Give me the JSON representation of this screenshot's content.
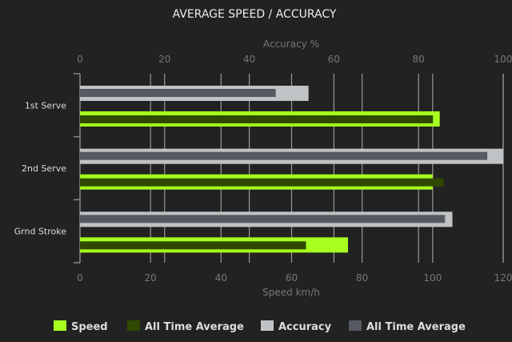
{
  "chart_data": {
    "type": "bar",
    "title": "AVERAGE SPEED / ACCURACY",
    "categories": [
      "1st Serve",
      "2nd Serve",
      "Grnd Stroke"
    ],
    "x_top": {
      "label": "Accuracy %",
      "range": [
        0,
        100
      ],
      "ticks": [
        "0",
        "20",
        "40",
        "60",
        "80",
        "100"
      ]
    },
    "x_bottom": {
      "label": "Speed km/h",
      "range": [
        0,
        120
      ],
      "ticks": [
        "0",
        "20",
        "40",
        "60",
        "80",
        "100",
        "120"
      ]
    },
    "series": [
      {
        "name": "Speed",
        "axis": "bottom",
        "color": "#a6ff1f",
        "values": [
          102,
          100,
          76
        ]
      },
      {
        "name": "All Time Average",
        "axis": "bottom",
        "color": "#2f4a00",
        "values": [
          101,
          104,
          65
        ]
      },
      {
        "name": "Accuracy",
        "axis": "top",
        "color": "#bfc3c5",
        "values": [
          54,
          100,
          88
        ]
      },
      {
        "name": "All Time Average",
        "axis": "top",
        "color": "#555a61",
        "values": [
          47,
          97,
          87
        ]
      }
    ],
    "grid": true,
    "legend": "bottom"
  }
}
